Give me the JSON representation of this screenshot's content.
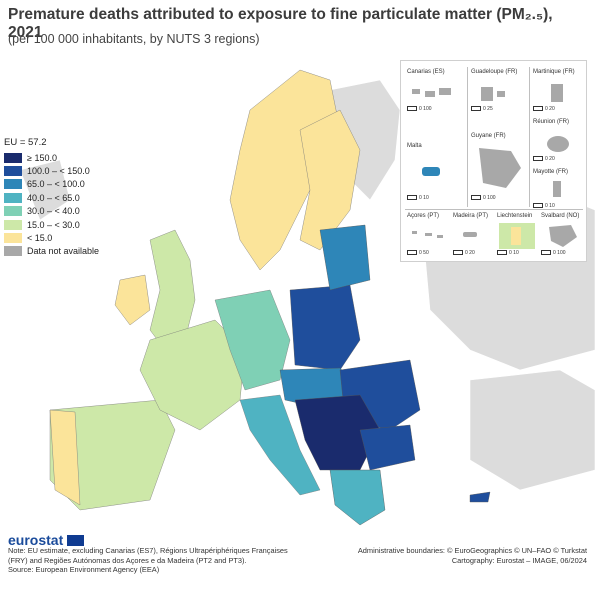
{
  "title": "Premature deaths attributed to exposure to fine particulate matter (PM₂.₅), 2021",
  "subtitle": "(per 100 000 inhabitants, by NUTS 3 regions)",
  "legend": {
    "eu_value": "EU = 57.2",
    "items": [
      {
        "label": "≥ 150.0",
        "color": "#1a2b6d"
      },
      {
        "label": "100.0 – < 150.0",
        "color": "#1f4e9c"
      },
      {
        "label": "65.0 – < 100.0",
        "color": "#2e86b8"
      },
      {
        "label": "40.0 – < 65.0",
        "color": "#4fb3c2"
      },
      {
        "label": "30.0 – < 40.0",
        "color": "#7fd0b5"
      },
      {
        "label": "15.0 – < 30.0",
        "color": "#cde8a8"
      },
      {
        "label": "< 15.0",
        "color": "#fbe49a"
      },
      {
        "label": "Data not available",
        "color": "#a8a8a8"
      }
    ]
  },
  "insets": {
    "canarias": {
      "label": "Canarias (ES)",
      "scale": "0  100"
    },
    "guadeloupe": {
      "label": "Guadeloupe (FR)",
      "scale": "0  25"
    },
    "martinique": {
      "label": "Martinique (FR)",
      "scale": "0  20"
    },
    "reunion": {
      "label": "Réunion (FR)",
      "scale": "0  20"
    },
    "malta": {
      "label": "Malta",
      "scale": "0  10"
    },
    "guyane": {
      "label": "Guyane (FR)",
      "scale": "0  100"
    },
    "mayotte": {
      "label": "Mayotte (FR)",
      "scale": "0  10"
    },
    "acores": {
      "label": "Açores (PT)",
      "scale": "0  50"
    },
    "madeira": {
      "label": "Madeira (PT)",
      "scale": "0  20"
    },
    "liechtenstein": {
      "label": "Liechtenstein",
      "scale": "0  10"
    },
    "svalbard": {
      "label": "Svalbard (NO)",
      "scale": "0  100"
    }
  },
  "footer": {
    "logo": "eurostat",
    "note_lines": [
      "Note: EU estimate, excluding Canarias (ES7), Régions Ultrapériphériques Françaises",
      "(FRY) and Regiões Autónomas dos Açores e da Madeira (PT2 and PT3).",
      "Source: European Environment Agency (EEA)"
    ],
    "credit_lines": [
      "Administrative boundaries: © EuroGeographics © UN–FAO © Turkstat",
      "Cartography: Eurostat – IMAGE, 06/2024"
    ]
  }
}
